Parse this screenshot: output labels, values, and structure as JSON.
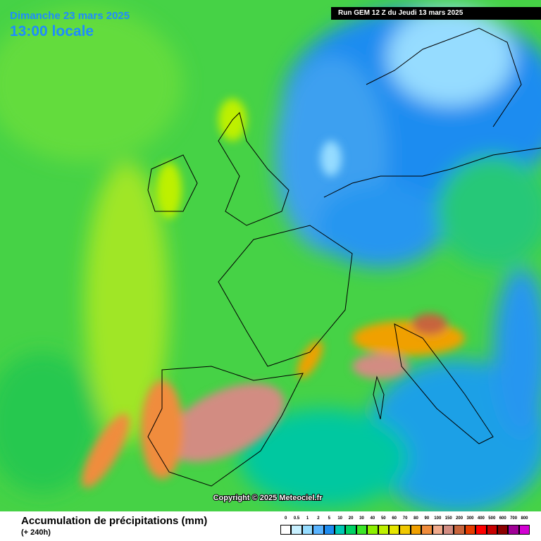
{
  "header": {
    "date": "Dimanche 23 mars 2025",
    "time": "13:00 locale",
    "run": "Run GEM 12 Z du Jeudi 13 mars 2025"
  },
  "copyright": "Copyright © 2025 Meteociel.fr",
  "footer": {
    "title": "Accumulation de précipitations (mm)",
    "subtitle": "(+ 240h)"
  },
  "legend": {
    "items": [
      {
        "label": "0",
        "color": "#ffffff"
      },
      {
        "label": "0.5",
        "color": "#c8f0ff"
      },
      {
        "label": "1",
        "color": "#96dcff"
      },
      {
        "label": "2",
        "color": "#5ab4ff"
      },
      {
        "label": "5",
        "color": "#1e8cf0"
      },
      {
        "label": "10",
        "color": "#00c8b4"
      },
      {
        "label": "20",
        "color": "#00d264"
      },
      {
        "label": "30",
        "color": "#3ce628"
      },
      {
        "label": "40",
        "color": "#8cf000"
      },
      {
        "label": "50",
        "color": "#bef000"
      },
      {
        "label": "60",
        "color": "#e6e600"
      },
      {
        "label": "70",
        "color": "#f0c800"
      },
      {
        "label": "80",
        "color": "#f0a000"
      },
      {
        "label": "90",
        "color": "#f08c3c"
      },
      {
        "label": "100",
        "color": "#f0aa8c"
      },
      {
        "label": "150",
        "color": "#d28c82"
      },
      {
        "label": "200",
        "color": "#c8643c"
      },
      {
        "label": "300",
        "color": "#e63c00"
      },
      {
        "label": "400",
        "color": "#ff0000"
      },
      {
        "label": "500",
        "color": "#c80000"
      },
      {
        "label": "600",
        "color": "#8c0000"
      },
      {
        "label": "700",
        "color": "#a00096"
      },
      {
        "label": "800",
        "color": "#d200d2"
      }
    ]
  }
}
